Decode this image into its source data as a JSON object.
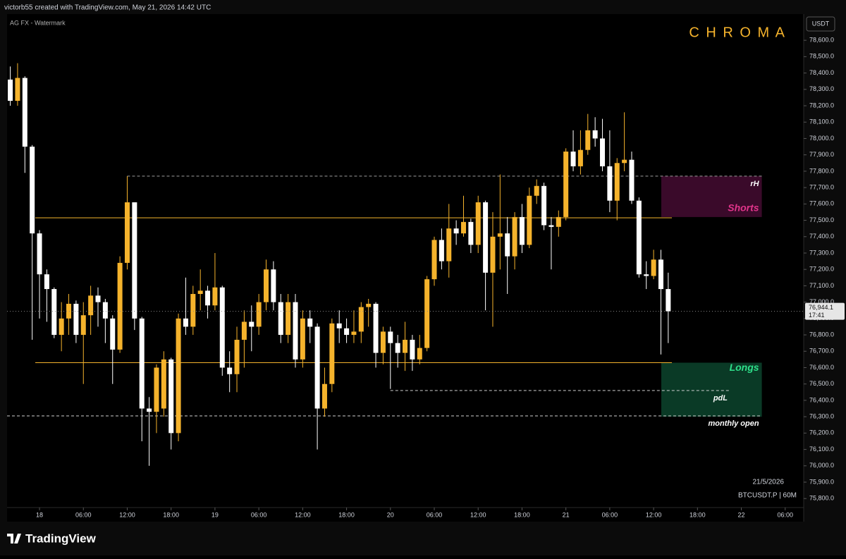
{
  "header": {
    "credit": "victorb55 created with TradingView.com, May 21, 2026 14:42 UTC",
    "watermark": "AG FX - Watermark",
    "brand": "C H R O M A",
    "logo": "TradingView"
  },
  "chart_data": {
    "type": "candlestick",
    "currency": "USDT",
    "date_label": "21/5/2026",
    "symbol_label": "BTCUSDT.P | 60M",
    "up_color": "#f5b32c",
    "down_color": "#ffffff",
    "x": [
      -4,
      -3,
      -2,
      -1,
      0,
      1,
      2,
      3,
      4,
      5,
      6,
      7,
      8,
      9,
      10,
      11,
      12,
      13,
      14,
      15,
      16,
      17,
      18,
      19,
      20,
      21,
      22,
      23,
      24,
      25,
      26,
      27,
      28,
      29,
      30,
      31,
      32,
      33,
      34,
      35,
      36,
      37,
      38,
      39,
      40,
      41,
      42,
      43,
      44,
      45,
      46,
      47,
      48,
      49,
      50,
      51,
      52,
      53,
      54,
      55,
      56,
      57,
      58,
      59,
      60,
      61,
      62,
      63,
      64,
      65,
      66,
      67,
      68,
      69,
      70,
      71,
      72,
      73,
      74,
      75,
      76,
      77,
      78,
      79,
      80,
      81,
      82,
      83,
      84,
      85,
      86
    ],
    "open": [
      78360,
      78230,
      78370,
      77950,
      77420,
      77170,
      77080,
      76800,
      76900,
      76990,
      76800,
      76920,
      77040,
      77000,
      76900,
      76710,
      77240,
      77610,
      76900,
      76350,
      76330,
      76350,
      76650,
      76200,
      76900,
      76850,
      77050,
      77070,
      76980,
      77090,
      76600,
      76560,
      76770,
      76880,
      76850,
      77000,
      77200,
      77000,
      76800,
      77000,
      76650,
      76900,
      76850,
      76350,
      76500,
      76870,
      76840,
      76800,
      76820,
      76970,
      76990,
      76690,
      76820,
      76750,
      76690,
      76770,
      76650,
      76720,
      77140,
      77380,
      77250,
      77450,
      77420,
      77490,
      77350,
      77610,
      77180,
      77400,
      77420,
      77280,
      77520,
      77350,
      77650,
      77710,
      77470,
      77460,
      77520,
      77920,
      77830,
      77930,
      78050,
      78000,
      77830,
      77620,
      77850,
      77870,
      77620,
      77170,
      77160,
      77260,
      77080
    ],
    "high": [
      78440,
      78460,
      78380,
      77960,
      77440,
      77200,
      77090,
      77000,
      77050,
      77010,
      77000,
      77100,
      77090,
      77020,
      76920,
      77280,
      77770,
      77610,
      76910,
      76420,
      76620,
      76700,
      76660,
      76930,
      77150,
      77100,
      77200,
      77100,
      77300,
      77100,
      76700,
      76850,
      76950,
      76980,
      77050,
      77260,
      77250,
      77050,
      77050,
      77050,
      76950,
      76950,
      76870,
      76600,
      76900,
      76950,
      76900,
      76950,
      77000,
      77020,
      77000,
      76850,
      76850,
      76800,
      76880,
      76800,
      76800,
      77160,
      77400,
      77450,
      77600,
      77500,
      77650,
      77510,
      77650,
      77620,
      77550,
      77780,
      77520,
      77550,
      77600,
      77700,
      77750,
      77730,
      77520,
      77560,
      77940,
      78050,
      78050,
      78150,
      78130,
      78120,
      78050,
      77880,
      78160,
      77920,
      77640,
      77250,
      77320,
      77320,
      77180
    ],
    "low": [
      78200,
      78200,
      77790,
      76770,
      76900,
      76880,
      76780,
      76700,
      76800,
      76750,
      76500,
      76800,
      76850,
      76750,
      76500,
      76690,
      77200,
      76830,
      76150,
      76000,
      76200,
      76300,
      76100,
      76150,
      76800,
      76800,
      76950,
      76900,
      76950,
      76550,
      76450,
      76450,
      76600,
      76700,
      76800,
      76950,
      76950,
      76750,
      76750,
      76600,
      76600,
      76750,
      76100,
      76300,
      76450,
      76750,
      76750,
      76750,
      76750,
      76850,
      76600,
      76620,
      76470,
      76600,
      76580,
      76580,
      76620,
      76700,
      77100,
      77200,
      77150,
      77350,
      77400,
      77300,
      77300,
      76950,
      76850,
      77200,
      77050,
      77200,
      77300,
      77330,
      77600,
      77440,
      77200,
      77400,
      77500,
      77800,
      77780,
      77900,
      77950,
      77800,
      77550,
      77500,
      77800,
      77600,
      77150,
      77080,
      77140,
      76680,
      76750
    ],
    "close": [
      78230,
      78370,
      77950,
      77420,
      77170,
      77080,
      76800,
      76900,
      76990,
      76800,
      76920,
      77040,
      77000,
      76900,
      76710,
      77240,
      77610,
      76900,
      76350,
      76330,
      76600,
      76650,
      76200,
      76900,
      76850,
      77050,
      77070,
      76980,
      77090,
      76600,
      76560,
      76770,
      76880,
      76850,
      77000,
      77200,
      77000,
      76800,
      77000,
      76650,
      76900,
      76850,
      76350,
      76500,
      76870,
      76840,
      76800,
      76820,
      76970,
      76990,
      76690,
      76820,
      76750,
      76690,
      76770,
      76650,
      76720,
      77140,
      77380,
      77250,
      77450,
      77420,
      77490,
      77350,
      77610,
      77180,
      77400,
      77420,
      77280,
      77520,
      77350,
      77650,
      77710,
      77470,
      77460,
      77520,
      77920,
      77830,
      77930,
      78050,
      78000,
      77830,
      77620,
      77850,
      77870,
      77620,
      77170,
      77160,
      77260,
      77080,
      76944.1
    ],
    "last_price_label": "76,944.1",
    "countdown": "17:41",
    "xlim": [
      -4.44,
      104.53
    ],
    "xticks": [
      {
        "value": 0,
        "label": "18"
      },
      {
        "value": 6,
        "label": "06:00"
      },
      {
        "value": 12,
        "label": "12:00"
      },
      {
        "value": 18,
        "label": "18:00"
      },
      {
        "value": 24,
        "label": "19"
      },
      {
        "value": 30,
        "label": "06:00"
      },
      {
        "value": 36,
        "label": "12:00"
      },
      {
        "value": 42,
        "label": "18:00"
      },
      {
        "value": 48,
        "label": "20"
      },
      {
        "value": 54,
        "label": "06:00"
      },
      {
        "value": 60,
        "label": "12:00"
      },
      {
        "value": 66,
        "label": "18:00"
      },
      {
        "value": 72,
        "label": "21"
      },
      {
        "value": 78,
        "label": "06:00"
      },
      {
        "value": 84,
        "label": "12:00"
      },
      {
        "value": 90,
        "label": "18:00"
      },
      {
        "value": 96,
        "label": "22"
      },
      {
        "value": 102,
        "label": "06:00"
      }
    ],
    "ylim": [
      75745,
      78760
    ],
    "yticks": [
      {
        "value": 75800,
        "label": "75,800.0"
      },
      {
        "value": 75900,
        "label": "75,900.0"
      },
      {
        "value": 76000,
        "label": "76,000.0"
      },
      {
        "value": 76100,
        "label": "76,100.0"
      },
      {
        "value": 76200,
        "label": "76,200.0"
      },
      {
        "value": 76300,
        "label": "76,300.0"
      },
      {
        "value": 76400,
        "label": "76,400.0"
      },
      {
        "value": 76500,
        "label": "76,500.0"
      },
      {
        "value": 76600,
        "label": "76,600.0"
      },
      {
        "value": 76700,
        "label": "76,700.0"
      },
      {
        "value": 76800,
        "label": "76,800.0"
      },
      {
        "value": 76900,
        "label": "76,900.0"
      },
      {
        "value": 77000,
        "label": "77,000.0"
      },
      {
        "value": 77100,
        "label": "77,100.0"
      },
      {
        "value": 77200,
        "label": "77,200.0"
      },
      {
        "value": 77300,
        "label": "77,300.0"
      },
      {
        "value": 77400,
        "label": "77,400.0"
      },
      {
        "value": 77500,
        "label": "77,500.0"
      },
      {
        "value": 77600,
        "label": "77,600.0"
      },
      {
        "value": 77700,
        "label": "77,700.0"
      },
      {
        "value": 77800,
        "label": "77,800.0"
      },
      {
        "value": 77900,
        "label": "77,900.0"
      },
      {
        "value": 78000,
        "label": "78,000.0"
      },
      {
        "value": 78100,
        "label": "78,100.0"
      },
      {
        "value": 78200,
        "label": "78,200.0"
      },
      {
        "value": 78300,
        "label": "78,300.0"
      },
      {
        "value": 78400,
        "label": "78,400.0"
      },
      {
        "value": 78500,
        "label": "78,500.0"
      },
      {
        "value": 78600,
        "label": "78,600.0"
      }
    ],
    "annotations": {
      "zones": [
        {
          "label": "Shorts",
          "from": 77520,
          "to": 77770,
          "x_from": 85.05,
          "x_to": 98.8,
          "color": "#3a0a2a",
          "label_color": "#e0348a"
        },
        {
          "label": "Longs",
          "from": 76300,
          "to": 76630,
          "x_from": 85.05,
          "x_to": 98.8,
          "color": "#0a3a26",
          "label_color": "#2ee08a"
        }
      ],
      "levels": [
        {
          "value": 77770,
          "x_from": 12,
          "x_to": 98.8,
          "style": "dashed",
          "color": "#9e9e9e",
          "label": "rH"
        },
        {
          "value": 77515,
          "x_from": -0.58,
          "x_to": 86.5,
          "style": "solid",
          "color": "#f5b32c"
        },
        {
          "value": 76630,
          "x_from": -0.58,
          "x_to": 86.5,
          "style": "solid",
          "color": "#f5b32c"
        },
        {
          "value": 76460,
          "x_from": 48,
          "x_to": 94.5,
          "style": "dashed",
          "color": "#cfcfcf",
          "label": "pdL"
        },
        {
          "value": 76305,
          "x_from": -4.44,
          "x_to": 98.8,
          "style": "dashed",
          "color": "#cfcfcf",
          "label": "monthly open"
        }
      ]
    }
  }
}
